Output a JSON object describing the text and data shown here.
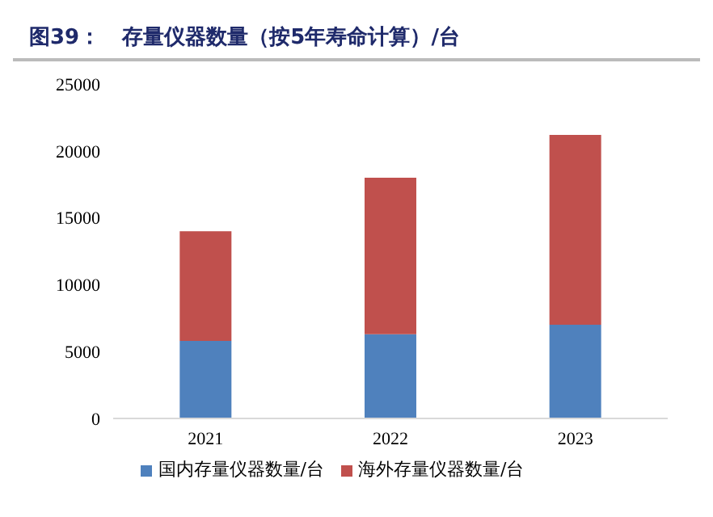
{
  "chart_data": {
    "type": "bar",
    "title": "图39：   存量仪器数量（按5年寿命计算）/台",
    "categories": [
      "2021",
      "2022",
      "2023"
    ],
    "stacked": true,
    "series": [
      {
        "name": "国内存量仪器数量/台",
        "color": "#4f81bd",
        "values": [
          5800,
          6300,
          7000
        ]
      },
      {
        "name": "海外存量仪器数量/台",
        "color": "#c0504d",
        "values": [
          8200,
          11700,
          14200
        ]
      }
    ],
    "ylim": [
      0,
      25000
    ],
    "yticks": [
      0,
      5000,
      10000,
      15000,
      20000,
      25000
    ],
    "grid": false,
    "legend": "bottom"
  }
}
